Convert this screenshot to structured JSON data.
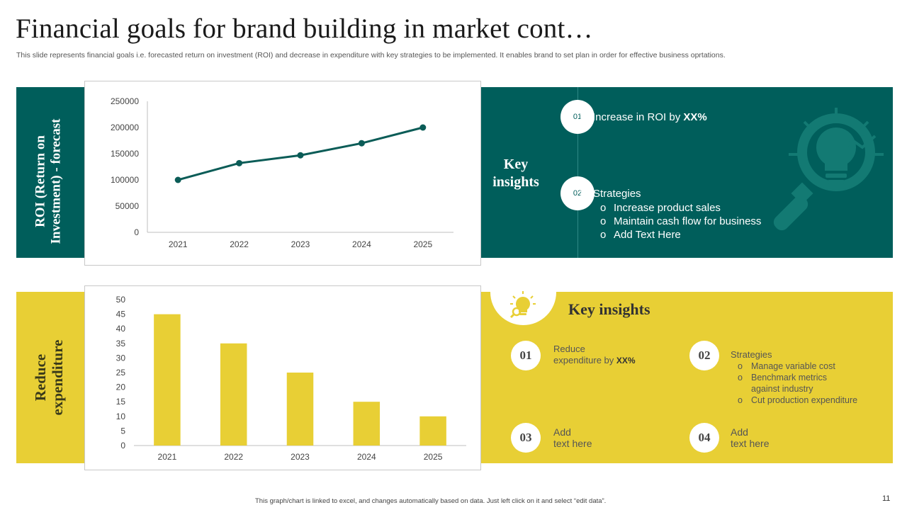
{
  "title": "Financial goals for brand building in market cont…",
  "subtitle": "This slide represents financial goals i.e. forecasted return on investment (ROI) and decrease in expenditure with key strategies to be implemented. It enables brand to set plan in order for effective business oprtations.",
  "colors": {
    "teal": "#005e5b",
    "yellow": "#e8cf35",
    "line": "#0b5c57",
    "bar": "#e8cf35"
  },
  "roi_section": {
    "label_line1": "ROI (Return on",
    "label_line2": "Investment) - forecast",
    "key_insights_line1": "Key",
    "key_insights_line2": "insights",
    "items": [
      {
        "num": "01",
        "text": "Increase  in ROI by ",
        "bold": "XX%"
      },
      {
        "num": "02",
        "heading": "Strategies",
        "bullets": [
          "Increase product sales",
          "Maintain cash flow for business",
          "Add Text Here"
        ]
      }
    ],
    "icon": "bulb-magnifier-icon"
  },
  "expenditure_section": {
    "label_line1": "Reduce",
    "label_line2": "expenditure",
    "key_insights": "Key insights",
    "icon": "bulb-idea-icon",
    "items": [
      {
        "num": "01",
        "line1": "Reduce",
        "line2": "expenditure by ",
        "bold": "XX%"
      },
      {
        "num": "02",
        "heading": "Strategies",
        "bullets": [
          "Manage variable  cost",
          "Benchmark metrics against industry",
          "Cut production  expenditure"
        ]
      },
      {
        "num": "03",
        "line1": "Add",
        "line2": "text here"
      },
      {
        "num": "04",
        "line1": "Add",
        "line2": "text here"
      }
    ]
  },
  "chart_data": [
    {
      "type": "line",
      "title": "",
      "xlabel": "",
      "ylabel": "",
      "x": [
        "2021",
        "2022",
        "2023",
        "2024",
        "2025"
      ],
      "values": [
        100000,
        132000,
        147000,
        170000,
        200000
      ],
      "ylim": [
        0,
        250000
      ],
      "yticks": [
        "0",
        "50000",
        "100000",
        "150000",
        "200000",
        "250000"
      ],
      "grid": false,
      "legend": "none"
    },
    {
      "type": "bar",
      "title": "",
      "xlabel": "",
      "ylabel": "",
      "categories": [
        "2021",
        "2022",
        "2023",
        "2024",
        "2025"
      ],
      "values": [
        45,
        35,
        25,
        15,
        10
      ],
      "ylim": [
        0,
        50
      ],
      "yticks": [
        "0",
        "5",
        "10",
        "15",
        "20",
        "25",
        "30",
        "35",
        "40",
        "45",
        "50"
      ],
      "grid": false,
      "legend": "none"
    }
  ],
  "footer": "This graph/chart is linked to excel, and changes automatically based on data. Just left click on it and select “edit data”.",
  "page_number": "11"
}
